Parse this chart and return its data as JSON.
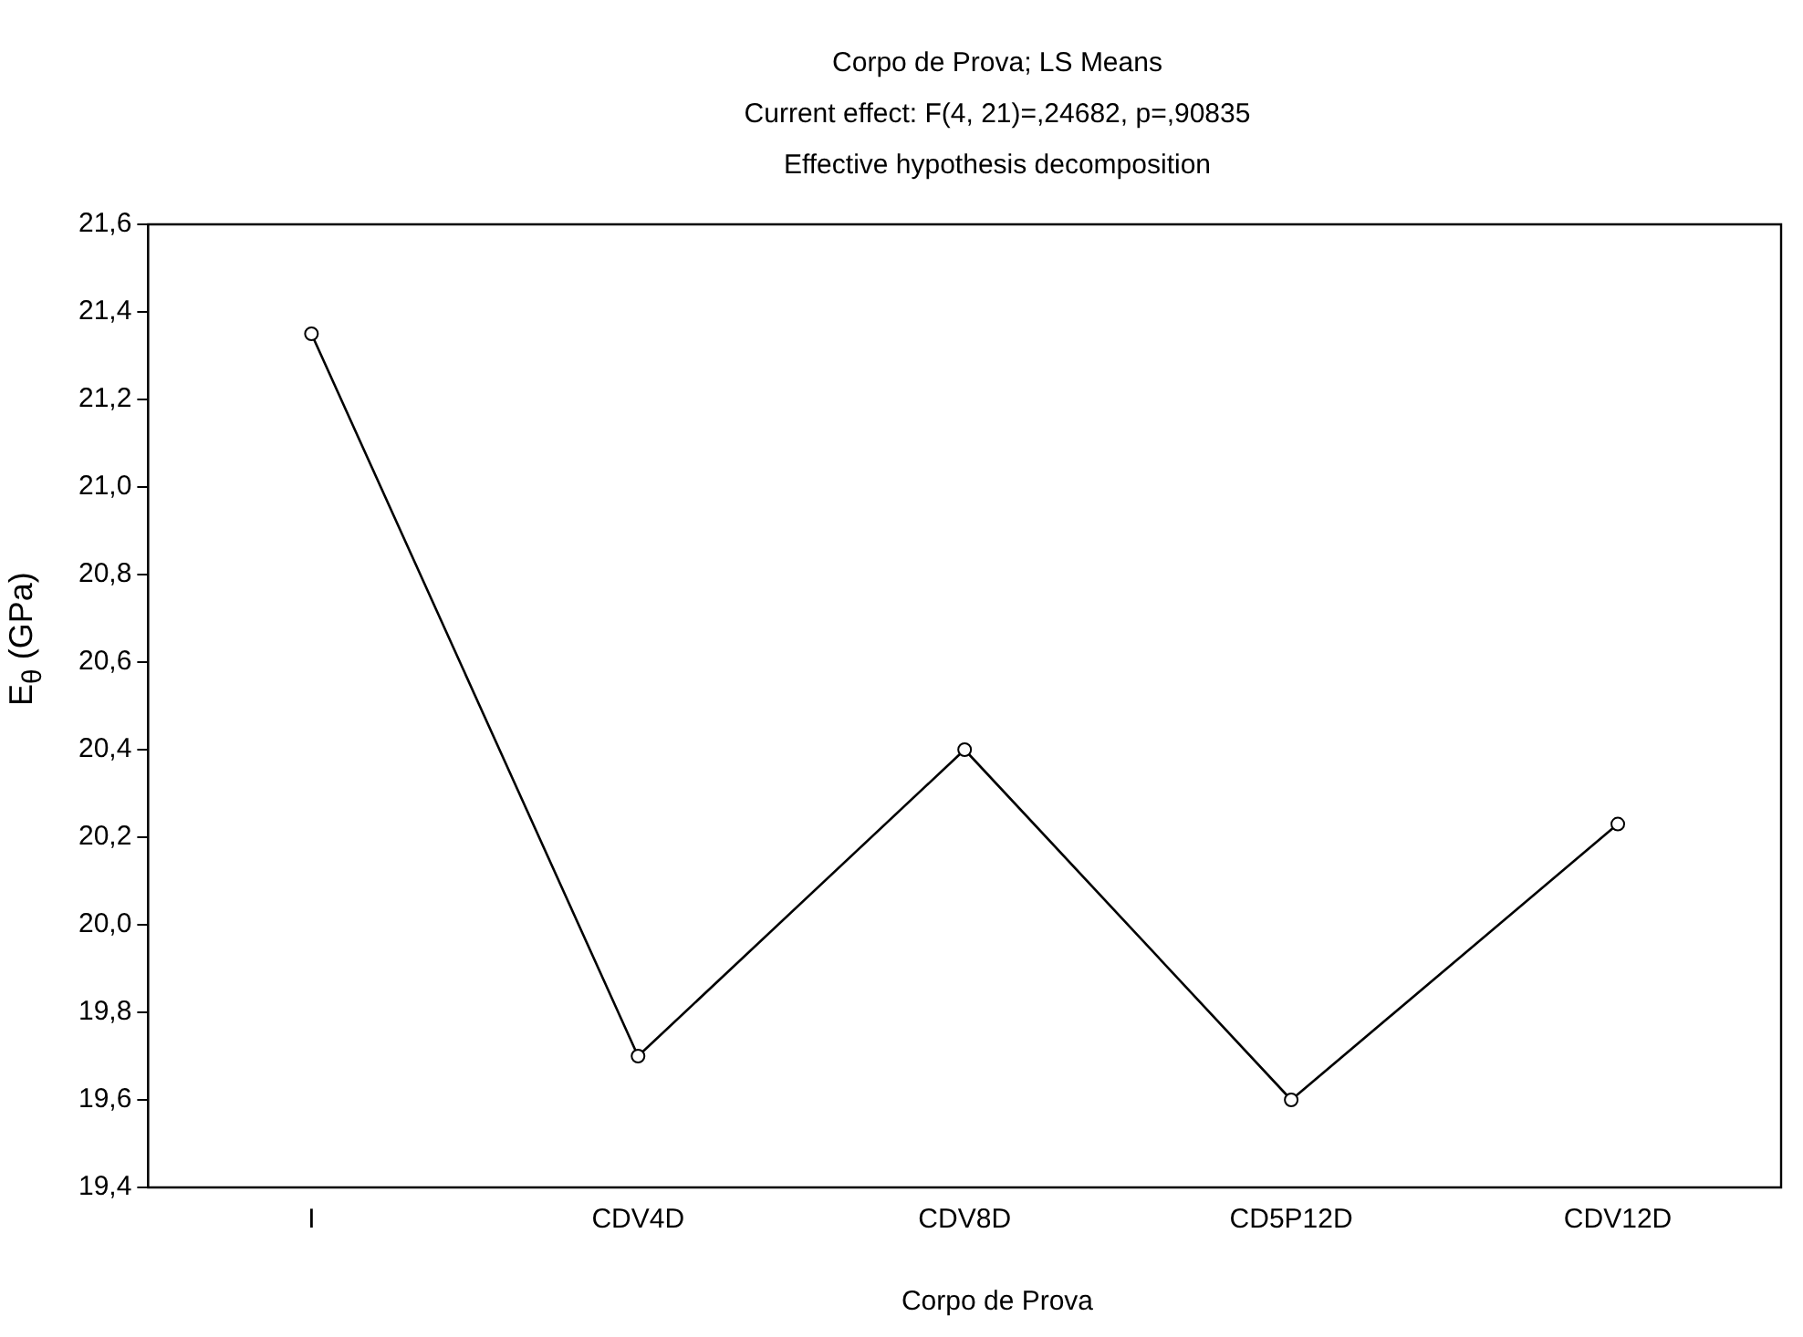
{
  "chart_data": {
    "type": "line",
    "title": "Corpo de Prova; LS Means",
    "subtitle": "Current effect: F(4, 21)=,24682, p=,90835",
    "annotations": [
      "Effective hypothesis decomposition"
    ],
    "xlabel": "Corpo de Prova",
    "ylabel": "E$_{θ}$ (GPa)",
    "categories": [
      "I",
      "CDV4D",
      "CDV8D",
      "CD5P12D",
      "CDV12D"
    ],
    "series": [
      {
        "color": "#000000",
        "values": [
          21.35,
          19.7,
          20.4,
          19.6,
          20.23
        ]
      }
    ],
    "ylim": [
      19.4,
      21.6
    ],
    "yticks": [
      {
        "value": 19.4,
        "label": "19,4"
      },
      {
        "value": 19.6,
        "label": "19,6"
      },
      {
        "value": 19.8,
        "label": "19,8"
      },
      {
        "value": 20.0,
        "label": "20,0"
      },
      {
        "value": 20.2,
        "label": "20,2"
      },
      {
        "value": 20.4,
        "label": "20,4"
      },
      {
        "value": 20.6,
        "label": "20,6"
      },
      {
        "value": 20.8,
        "label": "20,8"
      },
      {
        "value": 21.0,
        "label": "21,0"
      },
      {
        "value": 21.2,
        "label": "21,2"
      },
      {
        "value": 21.4,
        "label": "21,4"
      },
      {
        "value": 21.6,
        "label": "21,6"
      }
    ],
    "grid": false,
    "legend": false,
    "marker": "circle",
    "line_style": "solid"
  }
}
